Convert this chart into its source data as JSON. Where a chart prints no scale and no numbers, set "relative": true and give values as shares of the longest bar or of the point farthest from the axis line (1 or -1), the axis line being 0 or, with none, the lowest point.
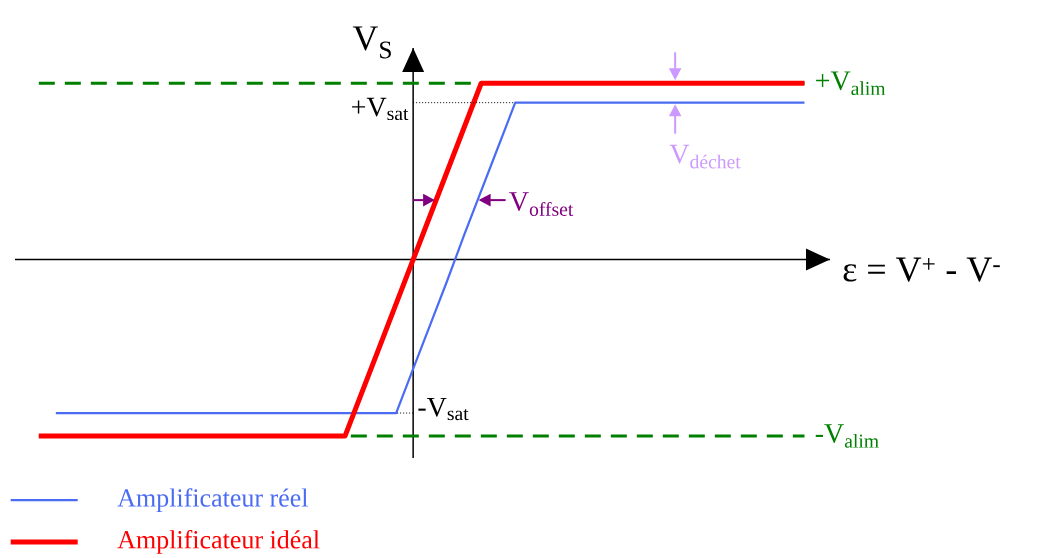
{
  "chart_data": {
    "type": "line",
    "relative": true,
    "xlabel": "ε = V$^{+}$ - V$^{-}$",
    "ylabel": "V$_{S}$",
    "categories": [
      null,
      null,
      null,
      null,
      null,
      null,
      null,
      null,
      null,
      null,
      null,
      null,
      null,
      null,
      null,
      null,
      null,
      null,
      null,
      null,
      null,
      null,
      null,
      null,
      null,
      null,
      null,
      null,
      null,
      null,
      null,
      null,
      null,
      null,
      null,
      null,
      null,
      null,
      null,
      null,
      null,
      null,
      null,
      null,
      null,
      null
    ],
    "series": [
      {
        "name": "Amplificateur réel",
        "color": "#4a6cf4",
        "values": [
          null,
          -0.87,
          -0.87,
          -0.87,
          -0.87,
          -0.87,
          -0.87,
          -0.87,
          -0.87,
          -0.87,
          -0.87,
          -0.87,
          -0.87,
          -0.87,
          -0.87,
          -0.87,
          -0.87,
          -0.87,
          -0.87,
          -0.87,
          -0.87,
          -0.87,
          -0.62,
          -0.37,
          -0.12,
          0.14,
          0.39,
          0.64,
          0.89,
          0.89,
          0.89,
          0.89,
          0.89,
          0.89,
          0.89,
          0.89,
          0.89,
          0.89,
          0.89,
          0.89,
          0.89,
          0.89,
          0.89,
          0.89,
          0.89,
          0.89
        ]
      },
      {
        "name": "Amplificateur idéal",
        "color": "#ff0000",
        "values": [
          -1,
          -1,
          -1,
          -1,
          -1,
          -1,
          -1,
          -1,
          -1,
          -1,
          -1,
          -1,
          -1,
          -1,
          -1,
          -1,
          -1,
          -1,
          -1,
          -0.75,
          -0.5,
          -0.25,
          0,
          0.25,
          0.5,
          0.75,
          1,
          1,
          1,
          1,
          1,
          1,
          1,
          1,
          1,
          1,
          1,
          1,
          1,
          1,
          1,
          1,
          1,
          1,
          1,
          1
        ]
      }
    ],
    "ref_lines": [
      {
        "axis": "y",
        "value": 1,
        "label": "+V$_{alim}$",
        "color": "#008000",
        "line_style": "dashed"
      },
      {
        "axis": "y",
        "value": -1,
        "label": "-V$_{alim}$",
        "color": "#008000",
        "line_style": "dashed"
      }
    ],
    "annotations": [
      "+V$_{sat}$",
      "-V$_{sat}$",
      "V$_{offset}$",
      {
        "text": "V$_{déchet}$",
        "y": 0.89
      }
    ],
    "legend": "bottom left"
  }
}
